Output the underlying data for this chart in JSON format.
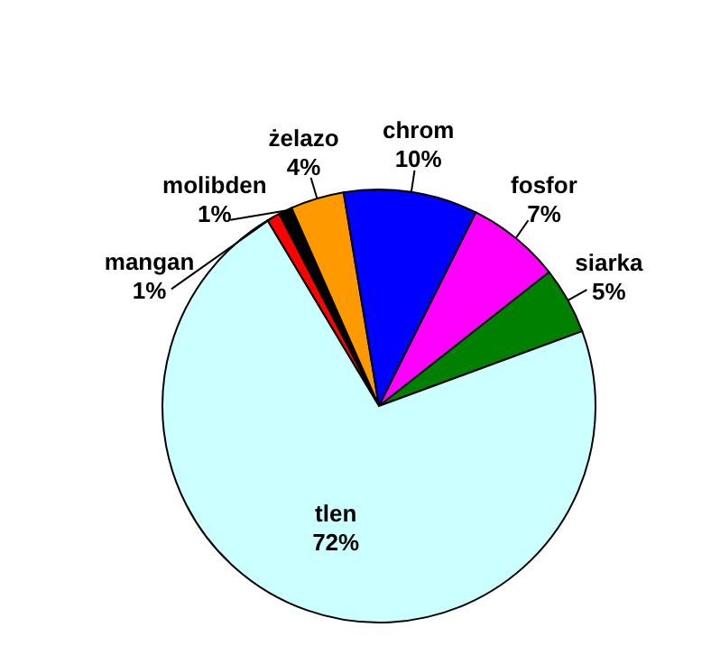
{
  "chart_data": {
    "type": "pie",
    "categories": [
      "mangan",
      "molibden",
      "żelazo",
      "chrom",
      "fosfor",
      "siarka",
      "tlen"
    ],
    "values": [
      1,
      1,
      4,
      10,
      7,
      5,
      72
    ],
    "colors": [
      "#ff0000",
      "#000000",
      "#ff9900",
      "#0000ff",
      "#ff00ff",
      "#008000",
      "#ccffff"
    ],
    "value_labels": [
      "1%",
      "1%",
      "4%",
      "10%",
      "7%",
      "5%",
      "72%"
    ]
  }
}
